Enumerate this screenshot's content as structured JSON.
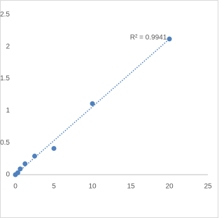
{
  "chart_data": {
    "type": "scatter",
    "x": [
      0,
      0.3125,
      0.625,
      1.25,
      2.5,
      5,
      10,
      20
    ],
    "series": [
      {
        "color": "#4f81bd",
        "values": [
          0,
          0.03,
          0.09,
          0.17,
          0.29,
          0.41,
          1.11,
          2.12
        ]
      }
    ],
    "xlim": [
      0,
      25
    ],
    "xticks": [
      0,
      5,
      10,
      15,
      20,
      25
    ],
    "ylim": [
      0,
      2.5
    ],
    "yticks": [
      0,
      0.5,
      1,
      1.5,
      2,
      2.5
    ],
    "trendline": "linear",
    "annotation": "R² = 0.9941",
    "grid": false
  }
}
